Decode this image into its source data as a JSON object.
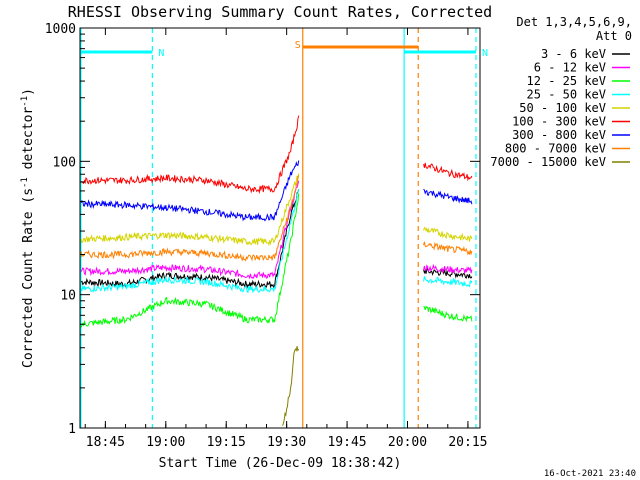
{
  "chart_data": {
    "type": "line",
    "title": "RHESSI Observing Summary Count Rates, Corrected",
    "xlabel": "Start Time (26-Dec-09 18:38:42)",
    "ylabel_main": "Corrected Count Rate (s",
    "ylabel_sup1": "-1",
    "ylabel_mid": " detector",
    "ylabel_sup2": "-1",
    "ylabel_end": ")",
    "y_scale": "log",
    "ylim": [
      1,
      1000
    ],
    "xlim": [
      "18:38:42",
      "20:18:00"
    ],
    "x_ticks": [
      "18:45",
      "19:00",
      "19:15",
      "19:30",
      "19:45",
      "20:00",
      "20:15"
    ],
    "y_ticks": [
      "1",
      "10",
      "100",
      "1000"
    ],
    "timestamp": "16-Oct-2021 23:40",
    "legend": {
      "placement": "right",
      "header": [
        "Det 1,3,4,5,6,9,",
        "Att 0"
      ]
    },
    "series": [
      {
        "name": "3 - 6 keV",
        "color": "#000000",
        "points": [
          [
            "18:39",
            12.5
          ],
          [
            "18:50",
            12
          ],
          [
            "19:00",
            14
          ],
          [
            "19:10",
            13.5
          ],
          [
            "19:20",
            12
          ],
          [
            "19:27",
            12
          ],
          [
            "19:31",
            40
          ],
          [
            "19:33",
            60
          ]
        ],
        "after": [
          [
            "20:04",
            15
          ],
          [
            "20:10",
            14.5
          ],
          [
            "20:16",
            14
          ]
        ]
      },
      {
        "name": "6 - 12 keV",
        "color": "#ff00ff",
        "points": [
          [
            "18:39",
            15
          ],
          [
            "18:50",
            15
          ],
          [
            "19:00",
            16
          ],
          [
            "19:10",
            15.5
          ],
          [
            "19:20",
            14
          ],
          [
            "19:27",
            14
          ],
          [
            "19:31",
            45
          ],
          [
            "19:33",
            70
          ]
        ],
        "after": [
          [
            "20:04",
            16
          ],
          [
            "20:10",
            15.5
          ],
          [
            "20:16",
            15
          ]
        ]
      },
      {
        "name": "12 - 25 keV",
        "color": "#00ff00",
        "points": [
          [
            "18:39",
            6
          ],
          [
            "18:50",
            6.5
          ],
          [
            "19:00",
            9
          ],
          [
            "19:10",
            8.5
          ],
          [
            "19:20",
            6.5
          ],
          [
            "19:27",
            6.5
          ],
          [
            "19:31",
            25
          ],
          [
            "19:33",
            55
          ]
        ],
        "after": [
          [
            "20:04",
            8
          ],
          [
            "20:10",
            7
          ],
          [
            "20:16",
            6.5
          ]
        ]
      },
      {
        "name": "25 - 50 keV",
        "color": "#00ffff",
        "points": [
          [
            "18:39",
            11
          ],
          [
            "18:50",
            11.5
          ],
          [
            "19:00",
            13
          ],
          [
            "19:10",
            12.5
          ],
          [
            "19:20",
            11
          ],
          [
            "19:27",
            11
          ],
          [
            "19:31",
            35
          ],
          [
            "19:33",
            60
          ]
        ],
        "after": [
          [
            "20:04",
            13
          ],
          [
            "20:10",
            12.5
          ],
          [
            "20:16",
            12
          ]
        ]
      },
      {
        "name": "50 - 100 keV",
        "color": "#d4d400",
        "points": [
          [
            "18:39",
            26
          ],
          [
            "18:50",
            27
          ],
          [
            "19:00",
            28
          ],
          [
            "19:10",
            27
          ],
          [
            "19:20",
            25
          ],
          [
            "19:27",
            25
          ],
          [
            "19:31",
            55
          ],
          [
            "19:33",
            80
          ]
        ],
        "after": [
          [
            "20:04",
            31
          ],
          [
            "20:10",
            28
          ],
          [
            "20:16",
            26
          ]
        ]
      },
      {
        "name": "100 - 300 keV",
        "color": "#ff0000",
        "points": [
          [
            "18:39",
            72
          ],
          [
            "18:50",
            72
          ],
          [
            "19:00",
            75
          ],
          [
            "19:10",
            72
          ],
          [
            "19:20",
            62
          ],
          [
            "19:27",
            62
          ],
          [
            "19:31",
            120
          ],
          [
            "19:33",
            210
          ]
        ],
        "after": [
          [
            "20:04",
            95
          ],
          [
            "20:10",
            82
          ],
          [
            "20:16",
            75
          ]
        ]
      },
      {
        "name": "300 - 800 keV",
        "color": "#0000ff",
        "points": [
          [
            "18:39",
            48
          ],
          [
            "18:50",
            47
          ],
          [
            "19:00",
            45
          ],
          [
            "19:10",
            42
          ],
          [
            "19:20",
            38
          ],
          [
            "19:27",
            38
          ],
          [
            "19:31",
            80
          ],
          [
            "19:33",
            100
          ]
        ],
        "after": [
          [
            "20:04",
            60
          ],
          [
            "20:10",
            54
          ],
          [
            "20:16",
            50
          ]
        ]
      },
      {
        "name": "800 - 7000 keV",
        "color": "#ff8000",
        "points": [
          [
            "18:39",
            20
          ],
          [
            "18:50",
            20
          ],
          [
            "19:00",
            21
          ],
          [
            "19:10",
            20.5
          ],
          [
            "19:20",
            19
          ],
          [
            "19:27",
            19
          ],
          [
            "19:31",
            45
          ],
          [
            "19:33",
            75
          ]
        ],
        "after": [
          [
            "20:04",
            24
          ],
          [
            "20:10",
            22
          ],
          [
            "20:16",
            21
          ]
        ]
      },
      {
        "name": "7000 - 15000 keV",
        "color": "#808000",
        "points": [
          [
            "19:29",
            1
          ],
          [
            "19:31",
            2
          ],
          [
            "19:32",
            4
          ],
          [
            "19:33",
            4
          ]
        ],
        "after": []
      }
    ],
    "flags": [
      {
        "label": "N",
        "color": "#00ffff",
        "start": "18:38:42",
        "end": "18:56:40",
        "level": 660
      },
      {
        "label": "N",
        "color": "#00ffff",
        "start": "19:59:10",
        "end": "20:17:00",
        "level": 660
      },
      {
        "label": "S",
        "color": "#ff8000",
        "start": "19:34:00",
        "end": "20:02:40",
        "level": 720
      }
    ],
    "markers": [
      {
        "time": "18:38:55",
        "color": "#00ffff",
        "style": "solid"
      },
      {
        "time": "18:56:40",
        "color": "#00ffff",
        "style": "dashed"
      },
      {
        "time": "19:34:00",
        "color": "#ff8000",
        "style": "solid"
      },
      {
        "time": "19:59:10",
        "color": "#00ffff",
        "style": "solid"
      },
      {
        "time": "20:02:40",
        "color": "#ff8000",
        "style": "dashed"
      },
      {
        "time": "20:17:00",
        "color": "#00ffff",
        "style": "dashed"
      }
    ]
  }
}
